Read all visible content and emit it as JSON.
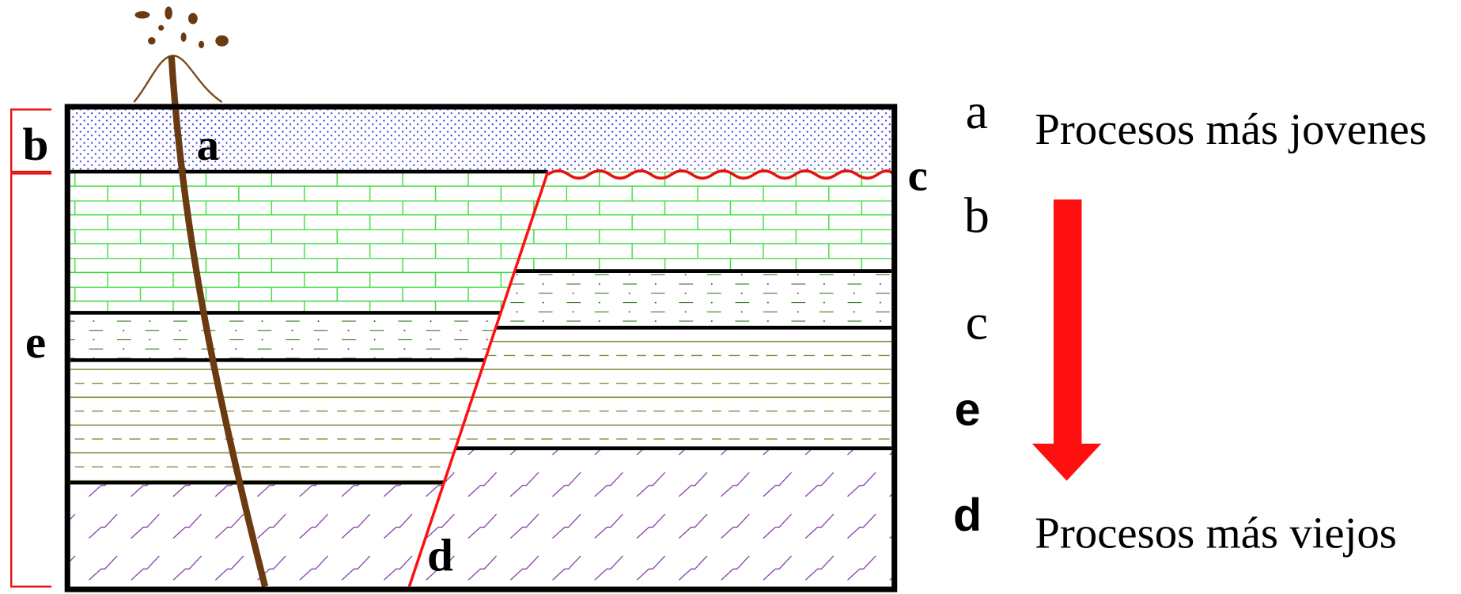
{
  "diagram": {
    "labels": {
      "volcano": "a",
      "top_layer": "b",
      "unconformity": "c",
      "fault": "d"
    },
    "brackets": [
      "b",
      "e"
    ],
    "sequence": [
      "a",
      "b",
      "c",
      "e",
      "d"
    ],
    "youngest": "Procesos más jovenes",
    "oldest": "Procesos más viejos"
  }
}
